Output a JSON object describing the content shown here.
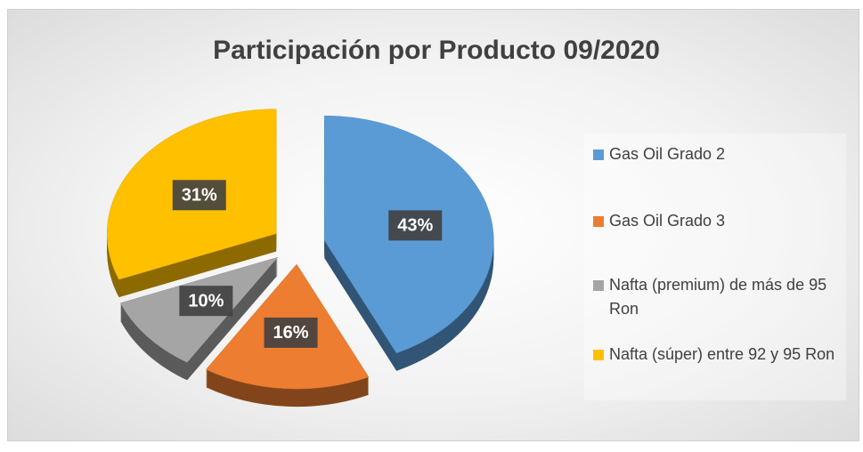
{
  "chart_data": {
    "type": "pie",
    "title": "Participación por Producto 09/2020",
    "categories": [
      "Gas Oil Grado 2",
      "Gas Oil Grado 3",
      "Nafta (premium) de más de 95 Ron",
      "Nafta (súper) entre 92 y 95 Ron"
    ],
    "values": [
      43,
      16,
      10,
      31
    ],
    "value_labels": [
      "43%",
      "16%",
      "10%",
      "31%"
    ],
    "colors": [
      "#5b9bd5",
      "#ed7d31",
      "#a5a5a5",
      "#ffc000"
    ],
    "legend": "right"
  }
}
